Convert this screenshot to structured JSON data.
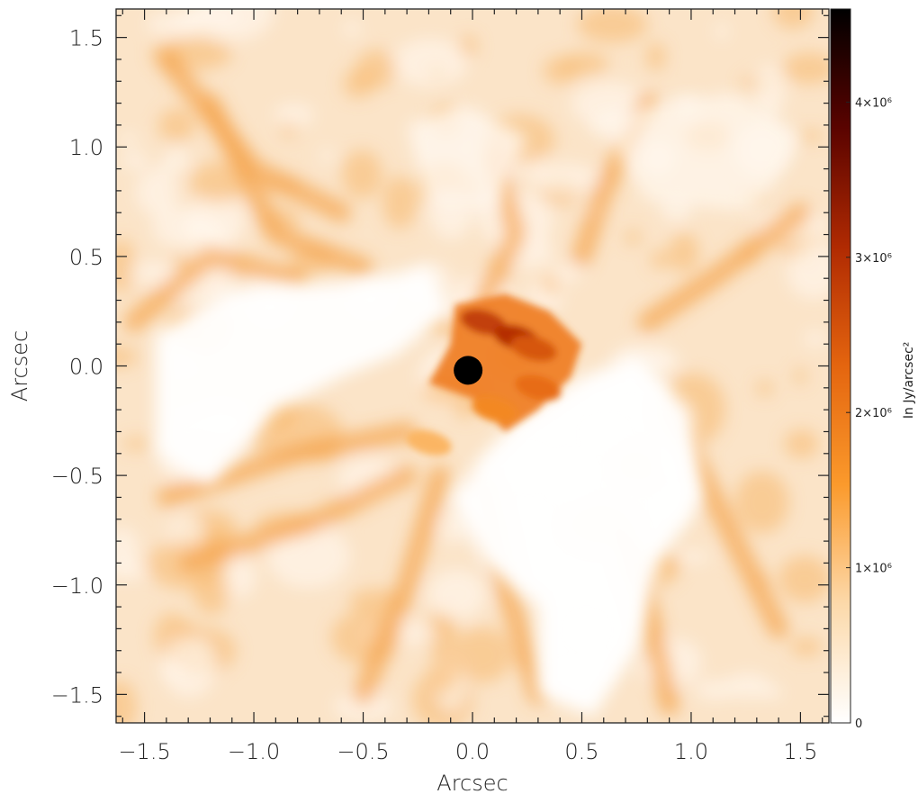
{
  "chart_data": {
    "type": "heatmap",
    "title": "",
    "xlabel": "Arcsec",
    "ylabel": "Arcsec",
    "xlim": [
      -1.63,
      1.63
    ],
    "ylim": [
      -1.63,
      1.63
    ],
    "x_ticks": [
      -1.5,
      -1.0,
      -0.5,
      0.0,
      0.5,
      1.0,
      1.5
    ],
    "x_tick_labels": [
      "−1.5",
      "−1.0",
      "−0.5",
      "0.0",
      "0.5",
      "1.0",
      "1.5"
    ],
    "y_ticks": [
      1.5,
      1.0,
      0.5,
      0.0,
      -0.5,
      -1.0,
      -1.5
    ],
    "y_tick_labels": [
      "1.5",
      "1.0",
      "0.5",
      "0.0",
      "−0.5",
      "−1.0",
      "−1.5"
    ],
    "colorbar": {
      "label": "In Jy/arcsec²",
      "range": [
        0,
        4600000
      ],
      "ticks": [
        0,
        1000000,
        2000000,
        3000000,
        4000000
      ],
      "tick_labels": [
        "0",
        "1×10⁶",
        "2×10⁶",
        "3×10⁶",
        "4×10⁶"
      ],
      "colors": [
        "#ffffff",
        "#fcd9aa",
        "#fb9a2c",
        "#e4650f",
        "#b02a02",
        "#5a0300",
        "#000000"
      ]
    },
    "features": [
      {
        "x": -0.02,
        "y": -0.02,
        "value": 4600000
      },
      {
        "x": 0.05,
        "y": 0.2,
        "value": 2800000
      },
      {
        "x": 0.2,
        "y": 0.13,
        "value": 3000000
      },
      {
        "x": 0.28,
        "y": 0.08,
        "value": 2500000
      },
      {
        "x": 0.3,
        "y": -0.1,
        "value": 2200000
      },
      {
        "x": 0.1,
        "y": -0.2,
        "value": 1800000
      },
      {
        "x": -0.2,
        "y": -0.35,
        "value": 1200000
      }
    ]
  }
}
